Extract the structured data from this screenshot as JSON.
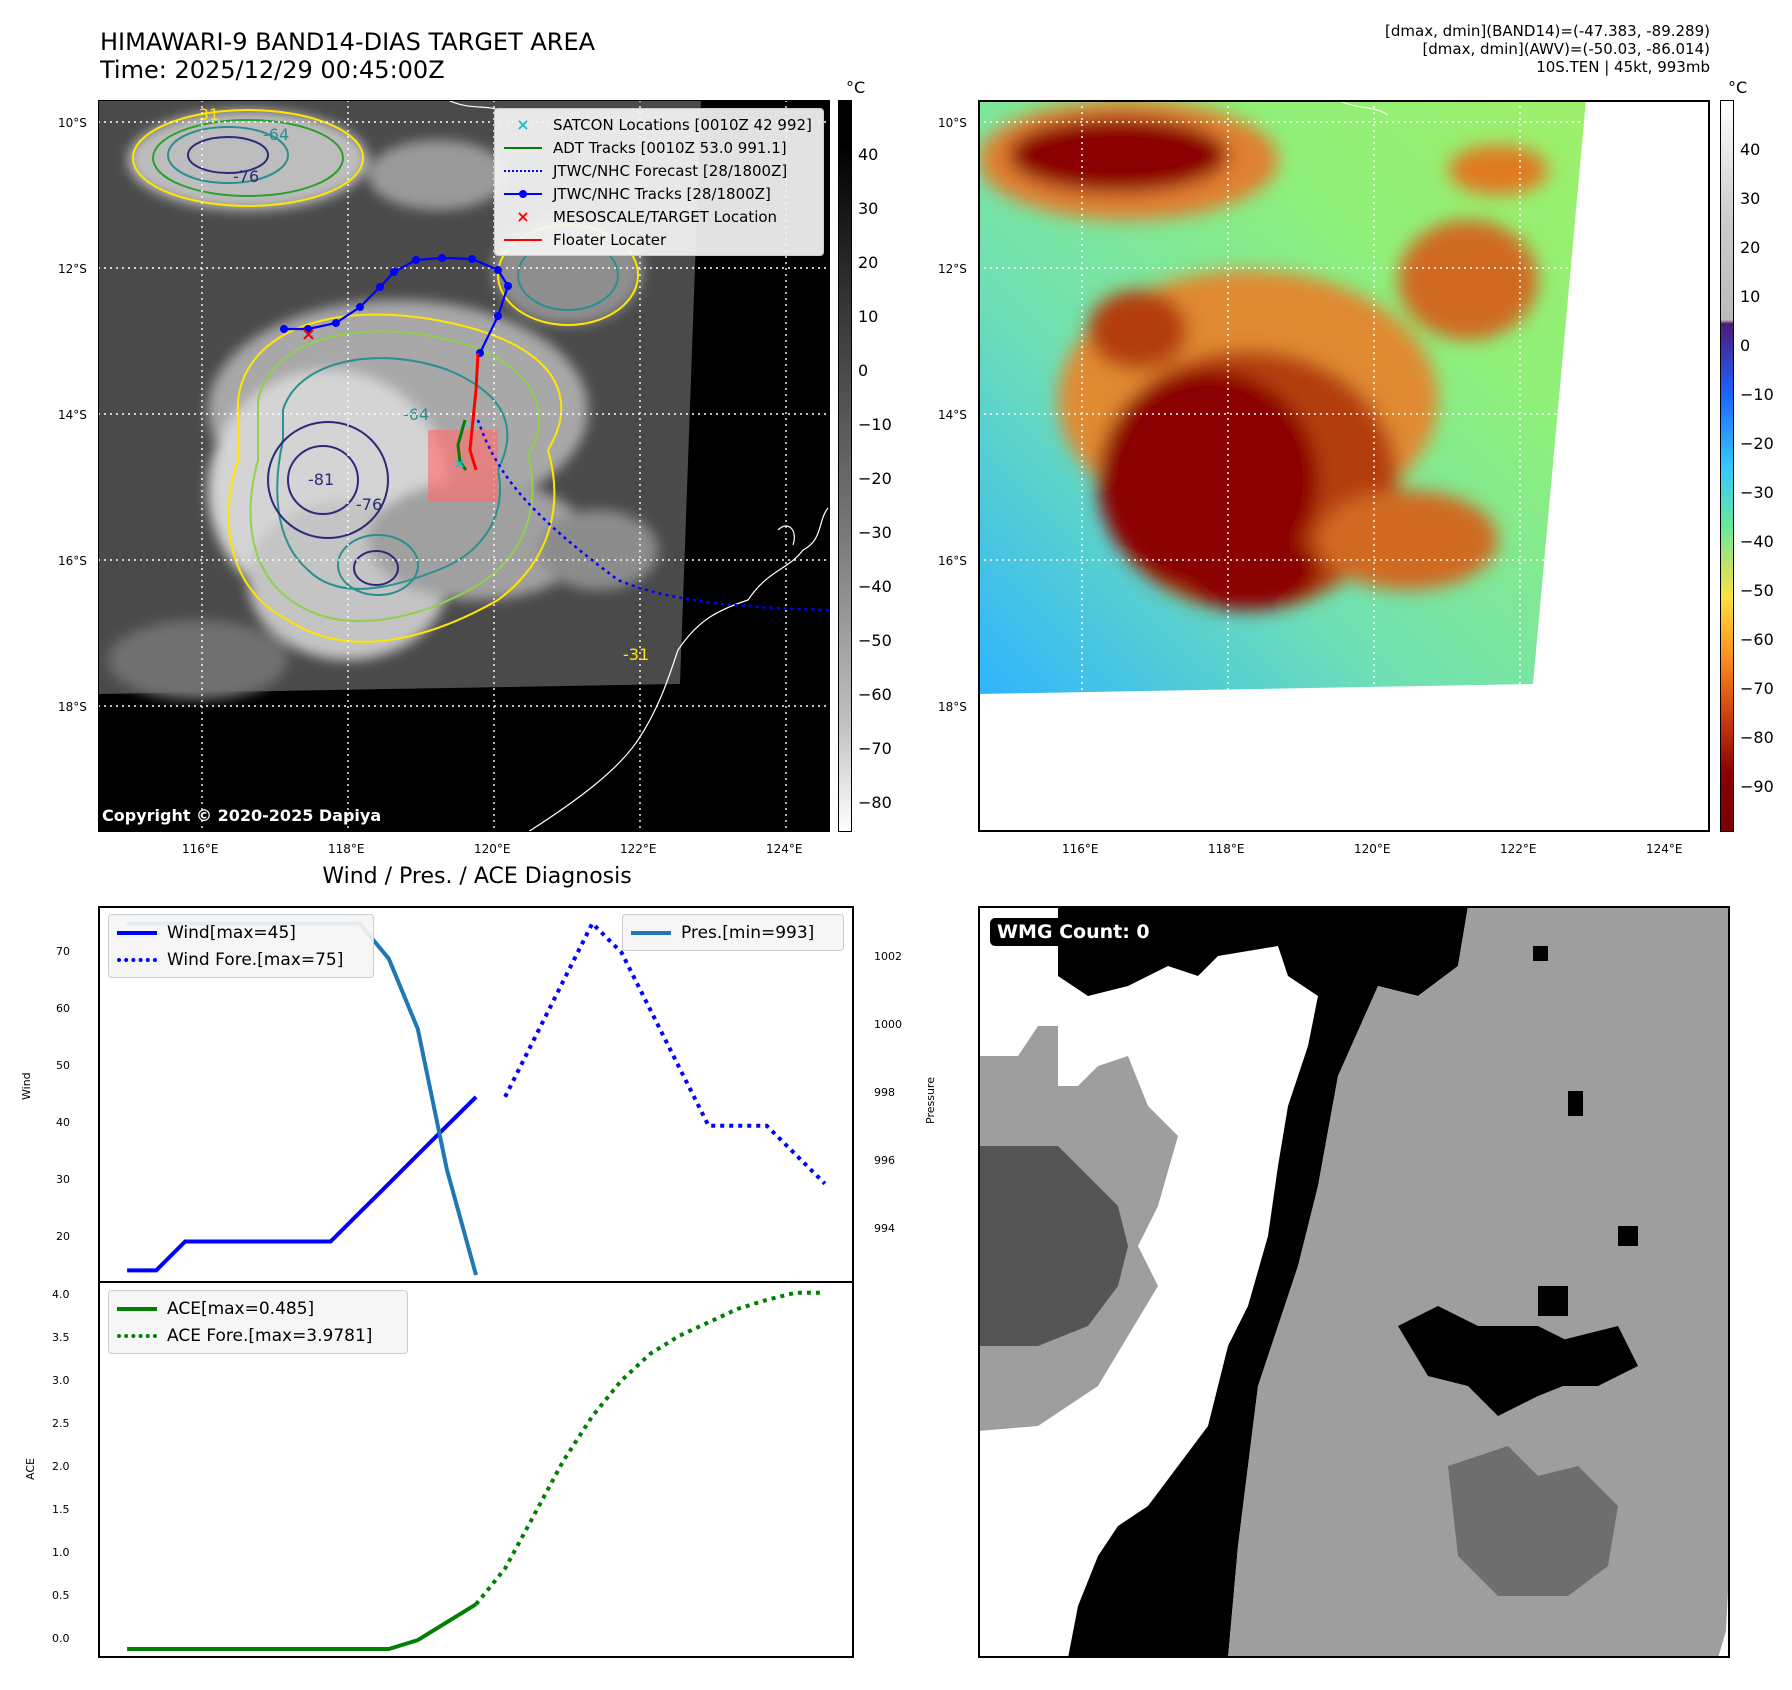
{
  "header": {
    "title_line1": "HIMAWARI-9 BAND14-DIAS TARGET AREA",
    "title_line2": "Time: 2025/12/29 00:45:00Z",
    "info_line1": "[dmax, dmin](BAND14)=(-47.383, -89.289)",
    "info_line2": "[dmax, dmin](AWV)=(-50.03, -86.014)",
    "info_line3": "10S.TEN | 45kt, 993mb"
  },
  "maps": {
    "lat_labels": [
      "10°S",
      "12°S",
      "14°S",
      "16°S",
      "18°S"
    ],
    "lon_labels": [
      "116°E",
      "118°E",
      "120°E",
      "122°E",
      "124°E"
    ],
    "copyright": "Copyright © 2020-2025 Dapiya",
    "legend": [
      {
        "label": "SATCON Locations [0010Z 42 992]",
        "color": "#17becf",
        "marker": "x"
      },
      {
        "label": "ADT Tracks [0010Z 53.0 991.1]",
        "color": "#008000",
        "marker": "line"
      },
      {
        "label": "JTWC/NHC Forecast [28/1800Z]",
        "color": "#0000ff",
        "marker": "dotted"
      },
      {
        "label": "JTWC/NHC Tracks [28/1800Z]",
        "color": "#0000ff",
        "marker": "line-dot"
      },
      {
        "label": "MESOSCALE/TARGET Location",
        "color": "#ff0000",
        "marker": "x"
      },
      {
        "label": "Floater Locater",
        "color": "#ff0000",
        "marker": "line"
      }
    ],
    "contour_labels": [
      "-31",
      "-64",
      "-76",
      "-81",
      "-76",
      "-64",
      "-31"
    ],
    "colorbar_unit": "°C",
    "colorbar1_ticks": [
      "40",
      "30",
      "20",
      "10",
      "0",
      "−10",
      "−20",
      "−30",
      "−40",
      "−50",
      "−60",
      "−70",
      "−80"
    ],
    "colorbar2_ticks": [
      "40",
      "30",
      "20",
      "10",
      "0",
      "−10",
      "−20",
      "−30",
      "−40",
      "−50",
      "−60",
      "−70",
      "−80",
      "−90"
    ]
  },
  "diagnosis": {
    "title": "Wind / Pres. / ACE Diagnosis",
    "wind_ylabel": "Wind",
    "pressure_ylabel": "Pressure",
    "ace_ylabel": "ACE",
    "wind_ticks": [
      "70",
      "60",
      "50",
      "40",
      "30",
      "20"
    ],
    "pressure_ticks": [
      "1002",
      "1000",
      "998",
      "996",
      "994"
    ],
    "ace_ticks": [
      "4.0",
      "3.5",
      "3.0",
      "2.5",
      "2.0",
      "1.5",
      "1.0",
      "0.5",
      "0.0"
    ],
    "legend_wind": "Wind[max=45]",
    "legend_wind_fore": "Wind Fore.[max=75]",
    "legend_pres": "Pres.[min=993]",
    "legend_ace": "ACE[max=0.485]",
    "legend_ace_fore": "ACE Fore.[max=3.9781]",
    "colors": {
      "wind": "#0000ff",
      "pressure": "#1f77b4",
      "ace": "#008000"
    }
  },
  "wmg": {
    "label": "WMG Count: 0"
  },
  "chart_data": [
    {
      "type": "line",
      "title": "Wind / Pres. / ACE Diagnosis",
      "ylabel": "Wind",
      "ylim": [
        13,
        78
      ],
      "series": [
        {
          "name": "Wind[max=45]",
          "x": [
            0,
            1,
            2,
            3,
            4,
            5,
            6,
            7,
            8,
            9,
            10,
            11,
            12,
            13
          ],
          "values": [
            15,
            15,
            20,
            20,
            20,
            20,
            20,
            20,
            25,
            30,
            35,
            40,
            45,
            null
          ]
        },
        {
          "name": "Wind Fore.[max=75]",
          "x": [
            13,
            14,
            15,
            16,
            17,
            18,
            19,
            20,
            21,
            22,
            23,
            24
          ],
          "values": [
            45,
            55,
            65,
            75,
            70,
            60,
            50,
            40,
            40,
            40,
            35,
            30
          ]
        }
      ]
    },
    {
      "type": "line",
      "ylabel": "Pressure",
      "ylim": [
        992.8,
        1003.5
      ],
      "series": [
        {
          "name": "Pres.[min=993]",
          "x": [
            0,
            1,
            2,
            3,
            4,
            5,
            6,
            7,
            8,
            9,
            10,
            11,
            12,
            13
          ],
          "values": [
            1003,
            1003,
            1003,
            1003,
            1003,
            1003,
            1003,
            1003,
            1003,
            1002,
            1000,
            996,
            993,
            null
          ]
        }
      ]
    },
    {
      "type": "line",
      "ylabel": "ACE",
      "ylim": [
        -0.1,
        4.1
      ],
      "series": [
        {
          "name": "ACE[max=0.485]",
          "x": [
            0,
            1,
            2,
            3,
            4,
            5,
            6,
            7,
            8,
            9,
            10,
            11,
            12
          ],
          "values": [
            0,
            0,
            0,
            0,
            0,
            0,
            0,
            0,
            0,
            0,
            0.1,
            0.3,
            0.5
          ]
        },
        {
          "name": "ACE Fore.[max=3.9781]",
          "x": [
            12,
            13,
            14,
            15,
            16,
            17,
            18,
            19,
            20,
            21,
            22,
            23,
            24
          ],
          "values": [
            0.5,
            0.9,
            1.5,
            2.1,
            2.6,
            3.0,
            3.3,
            3.5,
            3.65,
            3.8,
            3.9,
            3.98,
            3.98
          ]
        }
      ]
    }
  ]
}
